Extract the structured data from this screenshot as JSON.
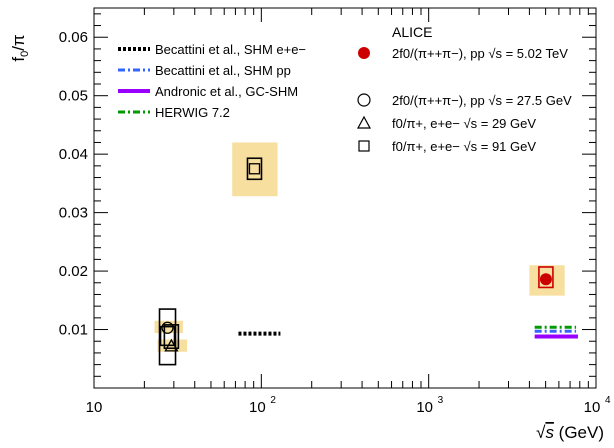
{
  "chart_data": {
    "type": "scatter",
    "x_scale": "log",
    "xlim": [
      10,
      10000
    ],
    "ylim": [
      0,
      0.065
    ],
    "xlabel": "√s (GeV)",
    "ylabel": "f0/π",
    "x_ticks": [
      {
        "value": 10,
        "label": "10"
      },
      {
        "value": 100,
        "label": "10",
        "exp": "2"
      },
      {
        "value": 1000,
        "label": "10",
        "exp": "3"
      },
      {
        "value": 10000,
        "label": "10",
        "exp": "4"
      }
    ],
    "y_ticks": [
      {
        "value": 0.01,
        "label": "0.01"
      },
      {
        "value": 0.02,
        "label": "0.02"
      },
      {
        "value": 0.03,
        "label": "0.03"
      },
      {
        "value": 0.04,
        "label": "0.04"
      },
      {
        "value": 0.05,
        "label": "0.05"
      },
      {
        "value": 0.06,
        "label": "0.06"
      }
    ],
    "experiment_label": "ALICE",
    "data_points": [
      {
        "name": "2f0/(π++π−), pp √s = 5.02 TeV",
        "marker": "filled-circle",
        "color": "#cc0000",
        "x": 5020,
        "y": 0.0186,
        "sys_y": [
          0.0172,
          0.0207
        ],
        "band_y": [
          0.0158,
          0.021
        ],
        "band_x": [
          4000,
          6500
        ]
      },
      {
        "name": "2f0/(π++π−), pp √s = 27.5 GeV",
        "marker": "open-circle",
        "color": "#000000",
        "x": 27.5,
        "y": 0.0103,
        "sys_y": [
          0.0073,
          0.0105
        ],
        "band_y": [
          0.0094,
          0.0115
        ],
        "band_x": [
          23,
          34
        ]
      },
      {
        "name": "f0/π+, e+e− √s = 29 GeV",
        "marker": "open-triangle",
        "color": "#000000",
        "x": 29,
        "y": 0.0072,
        "sys_y": [
          0.0068,
          0.0108
        ],
        "band_y": [
          0.0062,
          0.0083
        ],
        "band_x": [
          24,
          36
        ]
      },
      {
        "name": "f0/π+, e+e− √s = 91 GeV",
        "marker": "open-square",
        "color": "#000000",
        "x": 91,
        "y": 0.0375,
        "sys_y": [
          0.0357,
          0.0393
        ],
        "band_y": [
          0.0328,
          0.042
        ],
        "band_x": [
          67,
          125
        ],
        "extra_sys_y": [
          0.004,
          0.0135
        ],
        "extra_sys_x": 27.5
      }
    ],
    "model_lines": [
      {
        "name": "Becattini et al., SHM e+e−",
        "style": "dotted",
        "color": "#000000",
        "width": 4,
        "segments": [
          {
            "x": [
              73,
              130
            ],
            "y": 0.0093
          }
        ]
      },
      {
        "name": "Becattini et al., SHM pp",
        "style": "dashdot",
        "color": "#3366ff",
        "width": 3,
        "segments": [
          {
            "x": [
              4300,
              7600
            ],
            "y": 0.0097
          }
        ]
      },
      {
        "name": "Andronic et al., GC-SHM",
        "style": "solid",
        "color": "#9900ff",
        "width": 4,
        "segments": [
          {
            "x": [
              4300,
              7800
            ],
            "y": 0.0088
          }
        ]
      },
      {
        "name": "HERWIG 7.2",
        "style": "dashdot",
        "color": "#009900",
        "width": 3,
        "segments": [
          {
            "x": [
              4300,
              7600
            ],
            "y": 0.0104
          }
        ]
      }
    ],
    "legend_models_placement": "top-left",
    "legend_data_placement": "top-right",
    "grid": false
  }
}
